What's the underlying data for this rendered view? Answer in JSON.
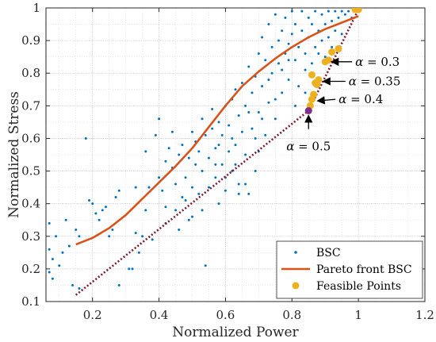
{
  "chart_data": {
    "type": "scatter",
    "xlabel": "Normalized Power",
    "ylabel": "Normalized Stress",
    "xlim": [
      0.06,
      1.2
    ],
    "ylim": [
      0.1,
      1.0
    ],
    "xticks": [
      "0.2",
      "0.4",
      "0.6",
      "0.8",
      "1",
      "1.2"
    ],
    "yticks": [
      "0.1",
      "0.2",
      "0.3",
      "0.4",
      "0.5",
      "0.6",
      "0.7",
      "0.8",
      "0.9",
      "1"
    ],
    "grid": true,
    "legend_position": "bottom-right",
    "legend": [
      {
        "label": "BSC",
        "marker": "dot",
        "color": "#0072BD"
      },
      {
        "label": "Pareto front BSC",
        "marker": "line",
        "color": "#D95319"
      },
      {
        "label": "Feasible Points",
        "marker": "circle",
        "color": "#EDB120"
      }
    ],
    "colors": {
      "bsc": "#0072BD",
      "pareto": "#D95319",
      "feasible": "#EDB120",
      "dotted_line": "#7E1A2E",
      "highlight": "#7E2F8E"
    },
    "series": [
      {
        "name": "BSC",
        "type": "scatter",
        "points": [
          [
            0.07,
            0.26
          ],
          [
            0.07,
            0.19
          ],
          [
            0.08,
            0.23
          ],
          [
            0.08,
            0.17
          ],
          [
            0.07,
            0.34
          ],
          [
            0.09,
            0.3
          ],
          [
            0.1,
            0.21
          ],
          [
            0.12,
            0.35
          ],
          [
            0.13,
            0.27
          ],
          [
            0.14,
            0.15
          ],
          [
            0.16,
            0.3
          ],
          [
            0.16,
            0.14
          ],
          [
            0.18,
            0.6
          ],
          [
            0.19,
            0.41
          ],
          [
            0.2,
            0.4
          ],
          [
            0.21,
            0.37
          ],
          [
            0.22,
            0.35
          ],
          [
            0.23,
            0.38
          ],
          [
            0.24,
            0.39
          ],
          [
            0.26,
            0.32
          ],
          [
            0.27,
            0.42
          ],
          [
            0.28,
            0.44
          ],
          [
            0.28,
            0.15
          ],
          [
            0.31,
            0.2
          ],
          [
            0.32,
            0.2
          ],
          [
            0.33,
            0.31
          ],
          [
            0.34,
            0.25
          ],
          [
            0.35,
            0.3
          ],
          [
            0.36,
            0.56
          ],
          [
            0.37,
            0.45
          ],
          [
            0.38,
            0.29
          ],
          [
            0.39,
            0.61
          ],
          [
            0.4,
            0.66
          ],
          [
            0.4,
            0.48
          ],
          [
            0.41,
            0.44
          ],
          [
            0.42,
            0.53
          ],
          [
            0.42,
            0.39
          ],
          [
            0.43,
            0.57
          ],
          [
            0.44,
            0.51
          ],
          [
            0.45,
            0.38
          ],
          [
            0.45,
            0.46
          ],
          [
            0.46,
            0.55
          ],
          [
            0.46,
            0.32
          ],
          [
            0.47,
            0.58
          ],
          [
            0.48,
            0.48
          ],
          [
            0.48,
            0.41
          ],
          [
            0.49,
            0.54
          ],
          [
            0.49,
            0.35
          ],
          [
            0.5,
            0.62
          ],
          [
            0.5,
            0.45
          ],
          [
            0.51,
            0.52
          ],
          [
            0.51,
            0.59
          ],
          [
            0.52,
            0.43
          ],
          [
            0.52,
            0.56
          ],
          [
            0.53,
            0.66
          ],
          [
            0.53,
            0.5
          ],
          [
            0.54,
            0.21
          ],
          [
            0.54,
            0.61
          ],
          [
            0.55,
            0.54
          ],
          [
            0.55,
            0.45
          ],
          [
            0.56,
            0.63
          ],
          [
            0.56,
            0.69
          ],
          [
            0.57,
            0.57
          ],
          [
            0.57,
            0.48
          ],
          [
            0.58,
            0.58
          ],
          [
            0.58,
            0.65
          ],
          [
            0.59,
            0.61
          ],
          [
            0.59,
            0.52
          ],
          [
            0.6,
            0.7
          ],
          [
            0.6,
            0.48
          ],
          [
            0.61,
            0.64
          ],
          [
            0.61,
            0.56
          ],
          [
            0.62,
            0.72
          ],
          [
            0.62,
            0.6
          ],
          [
            0.63,
            0.75
          ],
          [
            0.63,
            0.52
          ],
          [
            0.64,
            0.67
          ],
          [
            0.64,
            0.46
          ],
          [
            0.65,
            0.77
          ],
          [
            0.65,
            0.62
          ],
          [
            0.66,
            0.7
          ],
          [
            0.66,
            0.55
          ],
          [
            0.67,
            0.82
          ],
          [
            0.67,
            0.43
          ],
          [
            0.68,
            0.74
          ],
          [
            0.68,
            0.63
          ],
          [
            0.69,
            0.79
          ],
          [
            0.69,
            0.5
          ],
          [
            0.7,
            0.86
          ],
          [
            0.7,
            0.68
          ],
          [
            0.71,
            0.91
          ],
          [
            0.71,
            0.76
          ],
          [
            0.72,
            0.84
          ],
          [
            0.72,
            0.61
          ],
          [
            0.73,
            0.95
          ],
          [
            0.73,
            0.71
          ],
          [
            0.74,
            0.88
          ],
          [
            0.74,
            0.8
          ],
          [
            0.75,
            0.98
          ],
          [
            0.75,
            0.66
          ],
          [
            0.76,
            0.9
          ],
          [
            0.76,
            0.83
          ],
          [
            0.77,
            0.93
          ],
          [
            0.77,
            0.74
          ],
          [
            0.78,
            0.97
          ],
          [
            0.78,
            0.86
          ],
          [
            0.79,
            0.89
          ],
          [
            0.79,
            0.78
          ],
          [
            0.8,
            0.99
          ],
          [
            0.8,
            0.92
          ],
          [
            0.81,
            0.84
          ],
          [
            0.81,
            0.95
          ],
          [
            0.82,
            0.88
          ],
          [
            0.82,
            0.76
          ],
          [
            0.83,
            0.93
          ],
          [
            0.83,
            0.99
          ],
          [
            0.84,
            0.86
          ],
          [
            0.84,
            0.81
          ],
          [
            0.85,
            0.97
          ],
          [
            0.85,
            0.91
          ],
          [
            0.86,
            0.95
          ],
          [
            0.86,
            0.83
          ],
          [
            0.87,
            0.99
          ],
          [
            0.87,
            0.88
          ],
          [
            0.88,
            0.93
          ],
          [
            0.88,
            0.86
          ],
          [
            0.89,
            0.98
          ],
          [
            0.89,
            0.9
          ],
          [
            0.9,
            0.95
          ],
          [
            0.9,
            0.85
          ],
          [
            0.91,
            0.99
          ],
          [
            0.91,
            0.91
          ],
          [
            0.92,
            0.96
          ],
          [
            0.92,
            0.88
          ],
          [
            0.93,
            0.99
          ],
          [
            0.93,
            0.93
          ],
          [
            0.94,
            0.97
          ],
          [
            0.95,
            0.99
          ],
          [
            0.95,
            0.92
          ],
          [
            0.96,
            0.98
          ],
          [
            0.97,
            0.99
          ],
          [
            0.98,
            0.97
          ],
          [
            0.99,
            0.99
          ],
          [
            0.62,
            0.5
          ],
          [
            0.66,
            0.46
          ],
          [
            0.69,
            0.6
          ],
          [
            0.73,
            0.78
          ],
          [
            0.77,
            0.81
          ],
          [
            0.81,
            0.7
          ],
          [
            0.84,
            0.74
          ],
          [
            0.5,
            0.36
          ],
          [
            0.47,
            0.42
          ],
          [
            0.44,
            0.62
          ],
          [
            0.58,
            0.4
          ],
          [
            0.6,
            0.44
          ],
          [
            0.63,
            0.58
          ],
          [
            0.67,
            0.68
          ],
          [
            0.71,
            0.66
          ],
          [
            0.75,
            0.72
          ],
          [
            0.79,
            0.84
          ],
          [
            0.33,
            0.45
          ],
          [
            0.36,
            0.38
          ],
          [
            0.25,
            0.3
          ],
          [
            0.15,
            0.32
          ],
          [
            0.11,
            0.25
          ],
          [
            0.42,
            0.34
          ],
          [
            0.53,
            0.38
          ],
          [
            0.57,
            0.52
          ],
          [
            0.64,
            0.43
          ],
          [
            0.7,
            0.56
          ]
        ]
      },
      {
        "name": "Pareto front BSC",
        "type": "line",
        "x": [
          0.15,
          0.2,
          0.25,
          0.3,
          0.35,
          0.4,
          0.45,
          0.5,
          0.55,
          0.6,
          0.65,
          0.7,
          0.75,
          0.8,
          0.85,
          0.9,
          0.95,
          1.0
        ],
        "y": [
          0.275,
          0.295,
          0.325,
          0.365,
          0.415,
          0.465,
          0.515,
          0.57,
          0.635,
          0.7,
          0.76,
          0.805,
          0.845,
          0.88,
          0.91,
          0.935,
          0.955,
          0.975
        ]
      },
      {
        "name": "Feasible Points",
        "type": "scatter",
        "points": [
          [
            0.85,
            0.685
          ],
          [
            0.855,
            0.7
          ],
          [
            0.86,
            0.72
          ],
          [
            0.865,
            0.735
          ],
          [
            0.87,
            0.77
          ],
          [
            0.875,
            0.765
          ],
          [
            0.88,
            0.78
          ],
          [
            0.86,
            0.795
          ],
          [
            0.9,
            0.835
          ],
          [
            0.91,
            0.84
          ],
          [
            0.92,
            0.865
          ],
          [
            0.94,
            0.875
          ],
          [
            0.99,
            0.995
          ],
          [
            1.0,
            0.995
          ]
        ]
      }
    ],
    "dotted_line": {
      "x": [
        0.15,
        0.85,
        1.0
      ],
      "y": [
        0.12,
        0.685,
        0.995
      ]
    },
    "annotations": [
      {
        "label": "α = 0.3",
        "greek": "α",
        "rest": " = 0.3",
        "point": [
          0.9,
          0.835
        ],
        "text": [
          1.0,
          0.835
        ]
      },
      {
        "label": "α = 0.35",
        "greek": "α",
        "rest": " = 0.35",
        "point": [
          0.875,
          0.775
        ],
        "text": [
          0.98,
          0.775
        ]
      },
      {
        "label": "α = 0.4",
        "greek": "α",
        "rest": " = 0.4",
        "point": [
          0.858,
          0.715
        ],
        "text": [
          0.95,
          0.72
        ]
      },
      {
        "label": "α = 0.5",
        "greek": "α",
        "rest": " = 0.5",
        "point": [
          0.85,
          0.685
        ],
        "text": [
          0.85,
          0.575
        ]
      }
    ]
  }
}
